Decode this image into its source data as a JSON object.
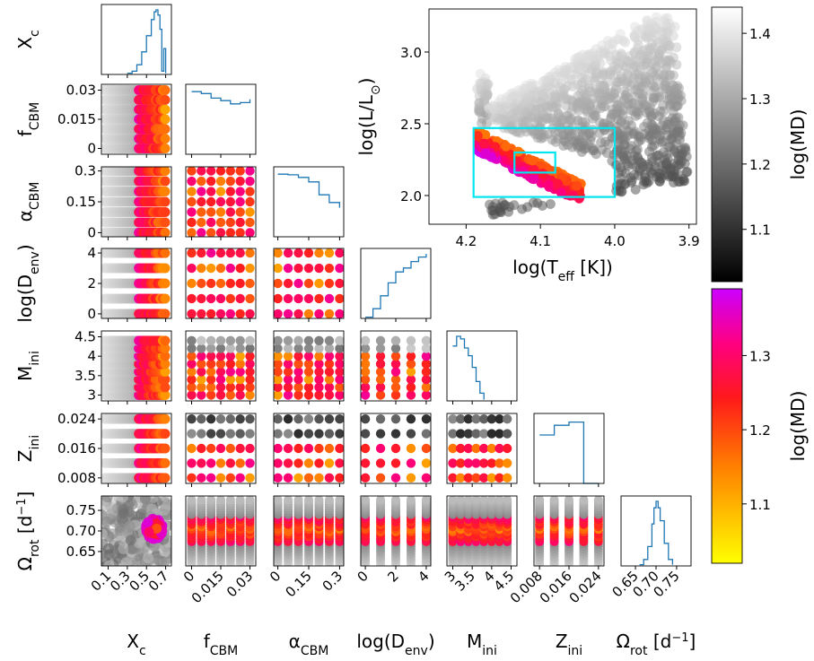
{
  "chart_data": {
    "type": "scatter",
    "description_kind": "corner plot of MCMC/grid samples colored by log(MD) plus HR-diagram inset",
    "parameters": [
      {
        "key": "Xc",
        "label": "X",
        "sub": "c",
        "range": [
          0.03,
          0.76
        ],
        "ticks": [
          0.1,
          0.3,
          0.5,
          0.7
        ],
        "tick_labels": [
          "0.1",
          "0.3",
          "0.5",
          "0.7"
        ]
      },
      {
        "key": "fCBM",
        "label": "f",
        "sub": "CBM",
        "range": [
          -0.003,
          0.033
        ],
        "ticks": [
          0,
          0.015,
          0.03
        ],
        "tick_labels": [
          "0",
          "0.015",
          "0.03"
        ]
      },
      {
        "key": "aCBM",
        "label": "α",
        "sub": "CBM",
        "range": [
          -0.02,
          0.32
        ],
        "ticks": [
          0,
          0.15,
          0.3
        ],
        "tick_labels": [
          "0",
          "0.15",
          "0.3"
        ]
      },
      {
        "key": "Denv",
        "label": "log(D",
        "sub": "env",
        "after": ")",
        "range": [
          -0.3,
          4.3
        ],
        "ticks": [
          0,
          2,
          4
        ],
        "tick_labels": [
          "0",
          "2",
          "4"
        ]
      },
      {
        "key": "Mini",
        "label": "M",
        "sub": "ini",
        "range": [
          2.85,
          4.65
        ],
        "ticks": [
          3,
          3.5,
          4,
          4.5
        ],
        "tick_labels": [
          "3",
          "3.5",
          "4",
          "4.5"
        ]
      },
      {
        "key": "Zini",
        "label": "Z",
        "sub": "ini",
        "range": [
          0.0065,
          0.0255
        ],
        "ticks": [
          0.008,
          0.016,
          0.024
        ],
        "tick_labels": [
          "0.008",
          "0.016",
          "0.024"
        ]
      },
      {
        "key": "Orot",
        "label": "Ω",
        "sub": "rot",
        "after": " [d",
        "sup": "−1",
        "after2": "]",
        "range": [
          0.615,
          0.785
        ],
        "ticks": [
          0.65,
          0.7,
          0.75
        ],
        "tick_labels": [
          "0.65",
          "0.70",
          "0.75"
        ]
      }
    ],
    "diagonal_histograms": {
      "Xc": {
        "x": [
          0.3,
          0.35,
          0.4,
          0.45,
          0.5,
          0.55,
          0.58,
          0.6,
          0.62,
          0.64,
          0.66,
          0.68,
          0.7
        ],
        "y": [
          0.02,
          0.05,
          0.15,
          0.35,
          0.6,
          0.85,
          0.97,
          1.0,
          0.92,
          0.7,
          0.05,
          0.4,
          0.02
        ]
      },
      "fCBM": {
        "x": [
          0,
          0.005,
          0.01,
          0.015,
          0.02,
          0.025,
          0.03
        ],
        "y": [
          0.97,
          0.94,
          0.87,
          0.83,
          0.78,
          0.8,
          0.85
        ]
      },
      "aCBM": {
        "x": [
          0,
          0.05,
          0.1,
          0.15,
          0.2,
          0.25,
          0.3
        ],
        "y": [
          0.97,
          0.96,
          0.92,
          0.85,
          0.65,
          0.53,
          0.45
        ]
      },
      "Denv": {
        "x": [
          0,
          0.5,
          1,
          1.5,
          2,
          2.5,
          3,
          3.5,
          4
        ],
        "y": [
          0.02,
          0.15,
          0.35,
          0.55,
          0.72,
          0.78,
          0.88,
          0.95,
          1.0
        ]
      },
      "Mini": {
        "x": [
          3.0,
          3.1,
          3.2,
          3.3,
          3.4,
          3.5,
          3.6,
          3.7,
          3.8
        ],
        "y": [
          0.85,
          1.0,
          0.96,
          0.82,
          0.7,
          0.52,
          0.3,
          0.12,
          0.02
        ]
      },
      "Zini": {
        "x": [
          0.008,
          0.012,
          0.016,
          0.02,
          0.024
        ],
        "y": [
          0.75,
          0.9,
          0.95,
          0.0,
          0.0
        ]
      },
      "Orot": {
        "x": [
          0.66,
          0.67,
          0.68,
          0.69,
          0.695,
          0.7,
          0.705,
          0.71,
          0.72,
          0.73,
          0.74
        ],
        "y": [
          0.02,
          0.1,
          0.3,
          0.65,
          0.9,
          1.0,
          0.9,
          0.7,
          0.35,
          0.1,
          0.02
        ]
      }
    },
    "hr_diagram": {
      "xlabel": "log(T",
      "xlabel_sub": "eff",
      "xlabel_after": " [K])",
      "ylabel": "log(L/L",
      "ylabel_sun": "⊙",
      "ylabel_after": ")",
      "xlim": [
        4.25,
        3.89
      ],
      "ylim": [
        1.8,
        3.3
      ],
      "xticks": [
        4.2,
        4.1,
        4.0,
        3.9
      ],
      "xtick_labels": [
        "4.2",
        "4.1",
        "4.0",
        "3.9"
      ],
      "yticks": [
        2.0,
        2.5,
        3.0
      ],
      "ytick_labels": [
        "2.0",
        "2.5",
        "3.0"
      ],
      "boxes": [
        {
          "t": [
            4.19,
            4.0
          ],
          "l": [
            1.99,
            2.47
          ],
          "color": "#00e5ee"
        },
        {
          "t": [
            4.135,
            4.08
          ],
          "l": [
            2.16,
            2.3
          ],
          "color": "#00e5ee"
        }
      ]
    },
    "colorbars": [
      {
        "label": "log(MD)",
        "cmap": "gray",
        "range": [
          1.02,
          1.44
        ],
        "ticks": [
          1.1,
          1.2,
          1.3,
          1.4
        ],
        "tick_labels": [
          "1.1",
          "1.2",
          "1.3",
          "1.4"
        ]
      },
      {
        "label": "log(MD)",
        "cmap": "spring",
        "range": [
          1.02,
          1.39
        ],
        "ticks": [
          1.1,
          1.2,
          1.3
        ],
        "tick_labels": [
          "1.1",
          "1.2",
          "1.3"
        ]
      }
    ]
  }
}
